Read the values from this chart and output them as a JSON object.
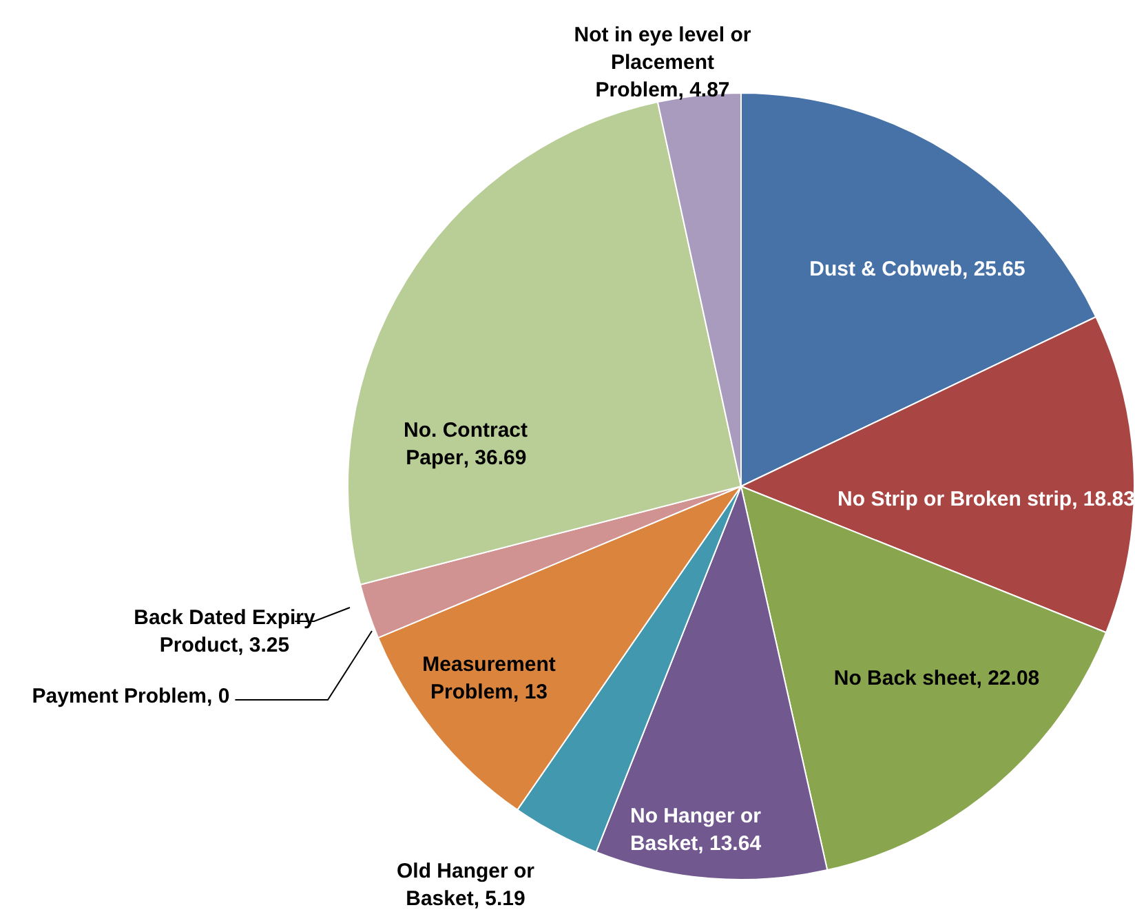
{
  "chart_data": {
    "type": "pie",
    "categories": [
      "Dust & Cobweb",
      "No Strip or Broken strip",
      "No Back sheet",
      "No Hanger or Basket",
      "Old Hanger or Basket",
      "Measurement Problem",
      "Payment Problem",
      "Back Dated Expiry Product",
      "No. Contract Paper",
      "Not in eye level or Placement Problem"
    ],
    "values": [
      25.65,
      18.83,
      22.08,
      13.64,
      5.19,
      13,
      0,
      3.25,
      36.69,
      4.87
    ],
    "colors": [
      "#4672a8",
      "#a94643",
      "#89a54e",
      "#71588f",
      "#4198af",
      "#db843d",
      "#93a9cf",
      "#d19392",
      "#b9cd96",
      "#a99bbd"
    ],
    "value_labels": [
      ", 25.65",
      ", 18.83",
      ", 22.08",
      ", 13.64",
      ", 5.19",
      ", 13",
      ", 0",
      ", 3.25",
      ", 36.69",
      ", 4.87"
    ],
    "legend": false
  }
}
